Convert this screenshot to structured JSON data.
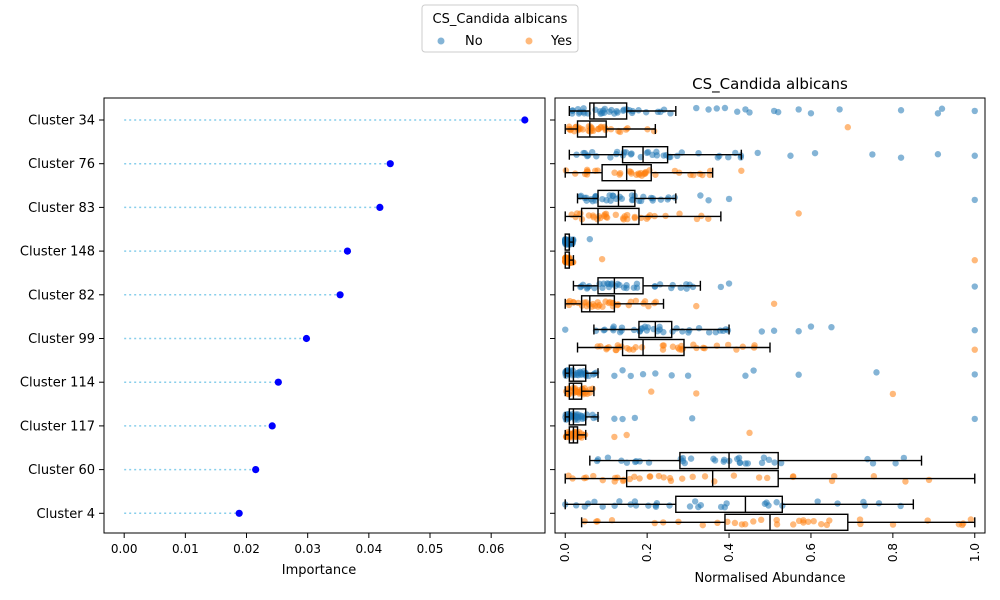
{
  "legend": {
    "title": "CS_Candida albicans",
    "items": [
      {
        "label": "No",
        "color": "#1f77b4"
      },
      {
        "label": "Yes",
        "color": "#ff7f0e"
      }
    ]
  },
  "chart_data": [
    {
      "type": "scatter",
      "title": "",
      "xlabel": "Importance",
      "ylabel": "",
      "categories": [
        "Cluster 34",
        "Cluster 76",
        "Cluster 83",
        "Cluster 148",
        "Cluster 82",
        "Cluster 99",
        "Cluster 114",
        "Cluster 117",
        "Cluster 60",
        "Cluster 4"
      ],
      "values": [
        0.0655,
        0.0435,
        0.0418,
        0.0365,
        0.0353,
        0.0298,
        0.0252,
        0.0242,
        0.0215,
        0.0188
      ],
      "xlim": [
        -0.0033,
        0.0688
      ],
      "xticks": [
        "0.00",
        "0.01",
        "0.02",
        "0.03",
        "0.04",
        "0.05",
        "0.06"
      ],
      "colors": {
        "marker": "#0000ff",
        "stem": "#87ceeb"
      }
    },
    {
      "type": "boxplot",
      "title": "CS_Candida albicans",
      "xlabel": "Normalised Abundance",
      "ylabel": "",
      "categories": [
        "Cluster 34",
        "Cluster 76",
        "Cluster 83",
        "Cluster 148",
        "Cluster 82",
        "Cluster 99",
        "Cluster 114",
        "Cluster 117",
        "Cluster 60",
        "Cluster 4"
      ],
      "xlim": [
        -0.025,
        1.025
      ],
      "xticks": [
        "0.0",
        "0.2",
        "0.4",
        "0.6",
        "0.8",
        "1.0"
      ],
      "series": [
        {
          "name": "No",
          "color": "#1f77b4",
          "boxes": [
            {
              "min": 0.01,
              "q1": 0.06,
              "median": 0.07,
              "q3": 0.15,
              "max": 0.27
            },
            {
              "min": 0.01,
              "q1": 0.14,
              "median": 0.19,
              "q3": 0.25,
              "max": 0.43
            },
            {
              "min": 0.03,
              "q1": 0.08,
              "median": 0.13,
              "q3": 0.17,
              "max": 0.27
            },
            {
              "min": 0.0,
              "q1": 0.0,
              "median": 0.01,
              "q3": 0.01,
              "max": 0.02
            },
            {
              "min": 0.02,
              "q1": 0.08,
              "median": 0.12,
              "q3": 0.19,
              "max": 0.33
            },
            {
              "min": 0.07,
              "q1": 0.18,
              "median": 0.22,
              "q3": 0.26,
              "max": 0.4
            },
            {
              "min": 0.0,
              "q1": 0.01,
              "median": 0.02,
              "q3": 0.05,
              "max": 0.08
            },
            {
              "min": 0.0,
              "q1": 0.01,
              "median": 0.02,
              "q3": 0.05,
              "max": 0.08
            },
            {
              "min": 0.06,
              "q1": 0.28,
              "median": 0.4,
              "q3": 0.52,
              "max": 0.87
            },
            {
              "min": 0.0,
              "q1": 0.27,
              "median": 0.44,
              "q3": 0.53,
              "max": 0.85
            }
          ],
          "outliers": [
            [
              0.32,
              0.35,
              0.37,
              0.39,
              0.42,
              0.44,
              0.45,
              0.51,
              0.52,
              0.57,
              0.6,
              0.67,
              0.82,
              0.91,
              0.92,
              1.0
            ],
            [
              0.47,
              0.55,
              0.61,
              0.75,
              0.82,
              0.91,
              1.0
            ],
            [
              0.33,
              0.35,
              0.4,
              1.0
            ],
            [
              0.06
            ],
            [
              0.38,
              0.4,
              1.0
            ],
            [
              0.0,
              0.48,
              0.51,
              0.57,
              0.6,
              0.65,
              1.0
            ],
            [
              0.12,
              0.14,
              0.16,
              0.19,
              0.22,
              0.26,
              0.3,
              0.44,
              0.46,
              0.57,
              0.76,
              1.0
            ],
            [
              0.12,
              0.14,
              0.17,
              0.31,
              1.0
            ],
            [],
            []
          ]
        },
        {
          "name": "Yes",
          "color": "#ff7f0e",
          "boxes": [
            {
              "min": 0.0,
              "q1": 0.03,
              "median": 0.06,
              "q3": 0.1,
              "max": 0.22
            },
            {
              "min": 0.0,
              "q1": 0.09,
              "median": 0.15,
              "q3": 0.21,
              "max": 0.36
            },
            {
              "min": 0.0,
              "q1": 0.04,
              "median": 0.08,
              "q3": 0.18,
              "max": 0.38
            },
            {
              "min": 0.0,
              "q1": 0.0,
              "median": 0.01,
              "q3": 0.01,
              "max": 0.02
            },
            {
              "min": 0.0,
              "q1": 0.04,
              "median": 0.06,
              "q3": 0.12,
              "max": 0.24
            },
            {
              "min": 0.03,
              "q1": 0.14,
              "median": 0.19,
              "q3": 0.29,
              "max": 0.5
            },
            {
              "min": 0.0,
              "q1": 0.01,
              "median": 0.02,
              "q3": 0.04,
              "max": 0.07
            },
            {
              "min": 0.0,
              "q1": 0.01,
              "median": 0.02,
              "q3": 0.03,
              "max": 0.05
            },
            {
              "min": 0.0,
              "q1": 0.15,
              "median": 0.36,
              "q3": 0.52,
              "max": 1.0
            },
            {
              "min": 0.04,
              "q1": 0.39,
              "median": 0.5,
              "q3": 0.69,
              "max": 1.0
            }
          ],
          "outliers": [
            [
              0.69
            ],
            [
              0.43
            ],
            [
              0.57
            ],
            [
              0.09,
              1.0
            ],
            [
              0.32,
              0.51
            ],
            [
              1.0
            ],
            [
              0.21,
              0.32,
              0.8
            ],
            [
              0.12,
              0.15,
              0.45
            ],
            [],
            []
          ]
        }
      ]
    }
  ]
}
